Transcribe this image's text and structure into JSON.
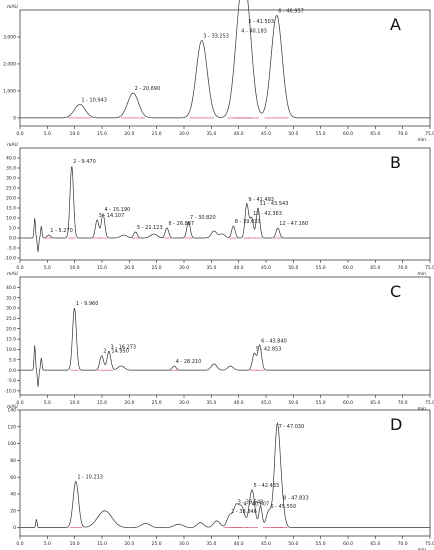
{
  "chart_data": [
    {
      "type": "line",
      "panel_label": "A",
      "unit_x": "min",
      "unit_y": "mAU",
      "xlim": [
        0,
        75
      ],
      "ylim": [
        -300,
        4000
      ],
      "x_ticks": [
        "0.0",
        "5.0",
        "10.0",
        "15.0",
        "20.0",
        "25.0",
        "30.0",
        "35.0",
        "40.0",
        "45.0",
        "50.0",
        "55.0",
        "60.0",
        "65.0",
        "70.0",
        "75.0"
      ],
      "y_ticks": [
        "0",
        "1,000",
        "2,000",
        "3,000"
      ],
      "peaks": [
        {
          "label": "1 - 10.943",
          "rt": 10.943,
          "height": 500
        },
        {
          "label": "2 - 20.690",
          "rt": 20.69,
          "height": 920
        },
        {
          "label": "3 - 33.253",
          "rt": 33.253,
          "height": 2870
        },
        {
          "label": "4 - 40.183",
          "rt": 40.183,
          "height": 3050
        },
        {
          "label": "5 - 41.503",
          "rt": 41.503,
          "height": 3400
        },
        {
          "label": "6 - 46.957",
          "rt": 46.957,
          "height": 3800
        }
      ]
    },
    {
      "type": "line",
      "panel_label": "B",
      "unit_x": "min",
      "unit_y": "mAU",
      "xlim": [
        0,
        75
      ],
      "ylim": [
        -11,
        45
      ],
      "x_ticks": [
        "0.0",
        "5.0",
        "10.0",
        "15.0",
        "20.0",
        "25.0",
        "30.0",
        "35.0",
        "40.0",
        "45.0",
        "50.0",
        "55.0",
        "60.0",
        "65.0",
        "70.0",
        "75.0"
      ],
      "y_ticks": [
        "-10.0",
        "-5.0",
        "0.0",
        "5.0",
        "10.0",
        "15.0",
        "20.0",
        "25.0",
        "30.0",
        "35.0",
        "40.0"
      ],
      "peaks": [
        {
          "label": "1 - 5.270",
          "rt": 5.27,
          "height": 1.5
        },
        {
          "label": "2 - 9.470",
          "rt": 9.47,
          "height": 36
        },
        {
          "label": "3 - 14.107",
          "rt": 14.107,
          "height": 9
        },
        {
          "label": "4 - 15.190",
          "rt": 15.19,
          "height": 12
        },
        {
          "label": "5 - 21.123",
          "rt": 21.123,
          "height": 3
        },
        {
          "label": "6 - 26.887",
          "rt": 26.887,
          "height": 5
        },
        {
          "label": "7 - 30.820",
          "rt": 30.82,
          "height": 8
        },
        {
          "label": "8 - 39.033",
          "rt": 39.033,
          "height": 6
        },
        {
          "label": "9 - 41.493",
          "rt": 41.493,
          "height": 17
        },
        {
          "label": "10 - 42.363",
          "rt": 42.363,
          "height": 10
        },
        {
          "label": "11 - 43.543",
          "rt": 43.543,
          "height": 15
        },
        {
          "label": "12 - 47.160",
          "rt": 47.16,
          "height": 5
        }
      ]
    },
    {
      "type": "line",
      "panel_label": "C",
      "unit_x": "min",
      "unit_y": "mAU",
      "xlim": [
        0,
        75
      ],
      "ylim": [
        -12,
        45
      ],
      "x_ticks": [
        "0.0",
        "5.0",
        "10.0",
        "15.0",
        "20.0",
        "25.0",
        "30.0",
        "35.0",
        "40.0",
        "45.0",
        "50.0",
        "55.0",
        "60.0",
        "65.0",
        "70.0",
        "75.0"
      ],
      "y_ticks": [
        "-10.0",
        "-5.0",
        "0.0",
        "5.0",
        "10.0",
        "15.0",
        "20.0",
        "25.0",
        "30.0",
        "35.0",
        "40.0"
      ],
      "peaks": [
        {
          "label": "1 - 9.960",
          "rt": 9.96,
          "height": 30
        },
        {
          "label": "2 - 14.950",
          "rt": 14.95,
          "height": 7
        },
        {
          "label": "3 - 16.273",
          "rt": 16.273,
          "height": 9
        },
        {
          "label": "4 - 28.210",
          "rt": 28.21,
          "height": 2
        },
        {
          "label": "5 - 42.853",
          "rt": 42.853,
          "height": 8
        },
        {
          "label": "6 - 43.840",
          "rt": 43.84,
          "height": 12
        }
      ]
    },
    {
      "type": "line",
      "panel_label": "D",
      "unit_x": "min",
      "unit_y": "mAU",
      "xlim": [
        0,
        75
      ],
      "ylim": [
        -10,
        140
      ],
      "x_ticks": [
        "0.0",
        "5.0",
        "10.0",
        "15.0",
        "20.0",
        "25.0",
        "30.0",
        "35.0",
        "40.0",
        "45.0",
        "50.0",
        "55.0",
        "60.0",
        "65.0",
        "70.0",
        "75.0"
      ],
      "y_ticks": [
        "0",
        "20",
        "40",
        "60",
        "80",
        "100",
        "120",
        "140"
      ],
      "peaks": [
        {
          "label": "1 - 10.213",
          "rt": 10.213,
          "height": 55
        },
        {
          "label": "2 - 38.346",
          "rt": 38.346,
          "height": 14
        },
        {
          "label": "3 - 39.540",
          "rt": 39.54,
          "height": 25
        },
        {
          "label": "4 - 40.607",
          "rt": 40.607,
          "height": 23
        },
        {
          "label": "5 - 42.433",
          "rt": 42.433,
          "height": 45
        },
        {
          "label": "6 - 45.550",
          "rt": 45.55,
          "height": 20
        },
        {
          "label": "7 - 47.030",
          "rt": 47.03,
          "height": 115
        },
        {
          "label": "8 - 47.833",
          "rt": 47.833,
          "height": 30
        }
      ]
    }
  ]
}
